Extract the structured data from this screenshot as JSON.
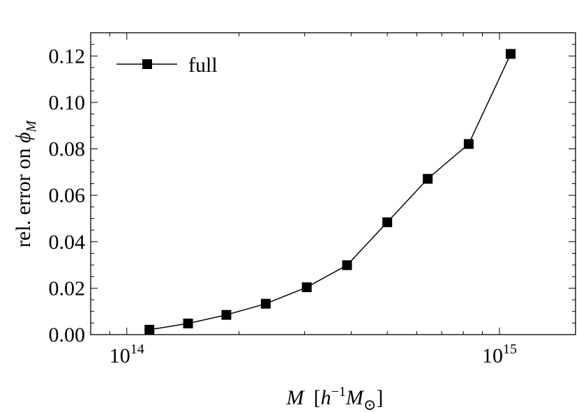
{
  "chart_data": {
    "type": "line",
    "title": "",
    "xlabel": {
      "main": "M",
      "open": "[",
      "h": "h",
      "exp": "−1",
      "m2": "M",
      "sub": "⊙",
      "close": "]"
    },
    "ylabel": {
      "text": "rel. error on ",
      "phi": "ϕ",
      "sub": "M"
    },
    "x_scale": "log",
    "xlim": [
      80000000000000,
      1600000000000000
    ],
    "ylim": [
      0.0,
      0.13
    ],
    "x_ticks": [
      {
        "value": 100000000000000,
        "base": "10",
        "exp": "14"
      },
      {
        "value": 1000000000000000,
        "base": "10",
        "exp": "15"
      }
    ],
    "y_ticks": [
      "0.00",
      "0.02",
      "0.04",
      "0.06",
      "0.08",
      "0.10",
      "0.12"
    ],
    "y_tick_values": [
      0.0,
      0.02,
      0.04,
      0.06,
      0.08,
      0.1,
      0.12
    ],
    "legend": {
      "position": "top-left",
      "entries": [
        "full"
      ]
    },
    "grid": false,
    "series": [
      {
        "name": "full",
        "marker": "square",
        "color": "#000000",
        "x": [
          115000000000000,
          146000000000000,
          185000000000000,
          236000000000000,
          304000000000000,
          390000000000000,
          500000000000000,
          642000000000000,
          827000000000000,
          1072000000000000
        ],
        "y": [
          0.0021,
          0.0048,
          0.0085,
          0.0133,
          0.0204,
          0.0299,
          0.0484,
          0.0671,
          0.0821,
          0.1209
        ]
      }
    ]
  }
}
